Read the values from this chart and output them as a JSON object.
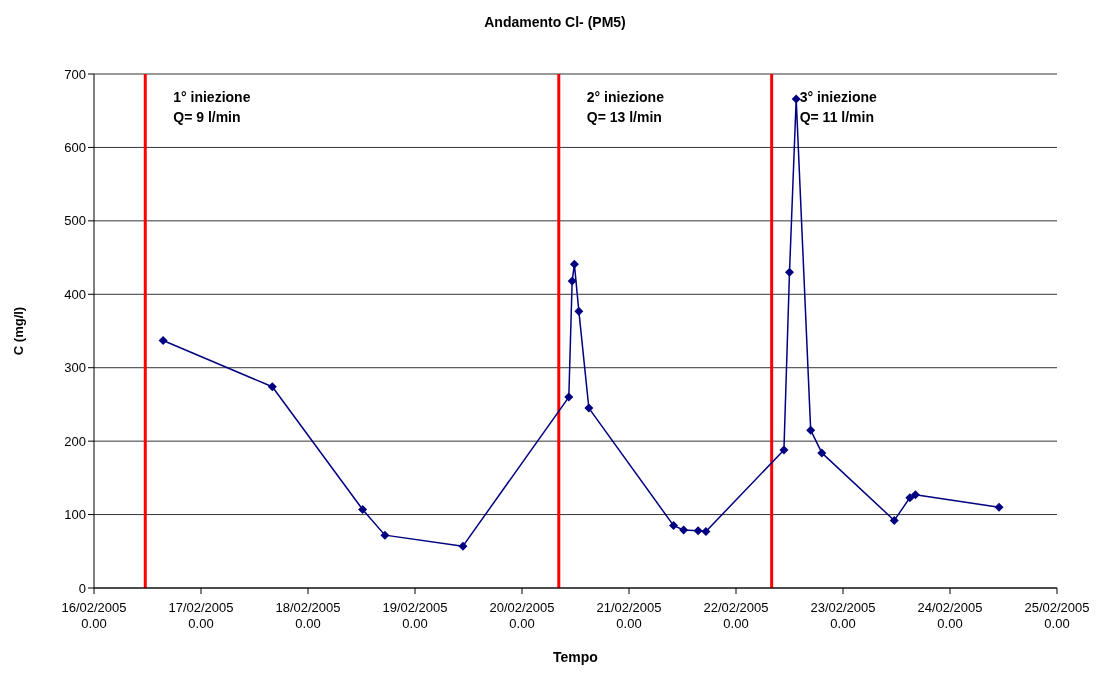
{
  "chart_data": {
    "type": "line",
    "title": "Andamento Cl- (PM5)",
    "xlabel": "Tempo",
    "ylabel": "C (mg/l)",
    "x": [
      "2005-02-16T15:30",
      "2005-02-17T16:00",
      "2005-02-18T12:15",
      "2005-02-18T17:15",
      "2005-02-19T10:45",
      "2005-02-20T10:30",
      "2005-02-20T11:15",
      "2005-02-20T11:45",
      "2005-02-20T12:45",
      "2005-02-20T15:00",
      "2005-02-21T10:00",
      "2005-02-21T12:15",
      "2005-02-21T15:30",
      "2005-02-21T17:15",
      "2005-02-22T10:45",
      "2005-02-22T12:00",
      "2005-02-22T13:30",
      "2005-02-22T16:45",
      "2005-02-22T19:15",
      "2005-02-23T11:30",
      "2005-02-23T15:00",
      "2005-02-23T16:15",
      "2005-02-24T11:00"
    ],
    "series": [
      {
        "color": "#000080",
        "values": [
          337,
          274,
          107,
          72,
          57,
          260,
          418,
          441,
          377,
          245,
          85,
          79,
          78,
          77,
          188,
          430,
          666,
          215,
          184,
          92,
          123,
          127,
          110
        ]
      }
    ],
    "xlim": [
      "2005-02-16",
      "2005-02-25"
    ],
    "xticks": [
      {
        "value": "2005-02-16",
        "label": "16/02/2005\n0.00"
      },
      {
        "value": "2005-02-17",
        "label": "17/02/2005\n0.00"
      },
      {
        "value": "2005-02-18",
        "label": "18/02/2005\n0.00"
      },
      {
        "value": "2005-02-19",
        "label": "19/02/2005\n0.00"
      },
      {
        "value": "2005-02-20",
        "label": "20/02/2005\n0.00"
      },
      {
        "value": "2005-02-21",
        "label": "21/02/2005\n0.00"
      },
      {
        "value": "2005-02-22",
        "label": "22/02/2005\n0.00"
      },
      {
        "value": "2005-02-23",
        "label": "23/02/2005\n0.00"
      },
      {
        "value": "2005-02-24",
        "label": "24/02/2005\n0.00"
      },
      {
        "value": "2005-02-25",
        "label": "25/02/2005\n0.00"
      }
    ],
    "ylim": [
      0,
      700
    ],
    "yticks": [
      0,
      100,
      200,
      300,
      400,
      500,
      600,
      700
    ],
    "ref_lines": [
      {
        "axis": "x",
        "value": "2005-02-16T11:30",
        "label": "1° iniezione\nQ= 9 l/min",
        "color": "#ff0000"
      },
      {
        "axis": "x",
        "value": "2005-02-20T08:15",
        "label": "2° iniezione\nQ= 13 l/min",
        "color": "#ff0000"
      },
      {
        "axis": "x",
        "value": "2005-02-22T08:00",
        "label": "3° iniezione\nQ= 11 l/min",
        "color": "#ff0000"
      }
    ],
    "grid": "y",
    "marker": "diamond",
    "line_style": "solid",
    "legend": false
  }
}
